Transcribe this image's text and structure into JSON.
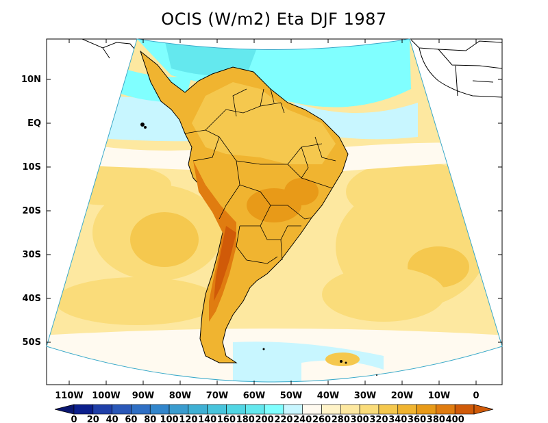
{
  "title": "OCIS (W/m2) Eta DJF 1987",
  "lat_axis": {
    "labels": [
      "10N",
      "EQ",
      "10S",
      "20S",
      "30S",
      "40S",
      "50S"
    ],
    "values": [
      10,
      0,
      -10,
      -20,
      -30,
      -40,
      -50
    ]
  },
  "lon_axis": {
    "labels": [
      "110W",
      "100W",
      "90W",
      "80W",
      "70W",
      "60W",
      "50W",
      "40W",
      "30W",
      "20W",
      "10W",
      "0"
    ],
    "values": [
      -110,
      -100,
      -90,
      -80,
      -70,
      -60,
      -50,
      -40,
      -30,
      -20,
      -10,
      0
    ]
  },
  "colorbar": {
    "labels": [
      "0",
      "20",
      "40",
      "60",
      "80",
      "100",
      "120",
      "140",
      "160",
      "180",
      "200",
      "220",
      "240",
      "260",
      "280",
      "300",
      "320",
      "340",
      "360",
      "380",
      "400"
    ],
    "colors": [
      "#0b1f8c",
      "#1f3fa8",
      "#2a58b8",
      "#2f6fc4",
      "#3286cc",
      "#3a9ccf",
      "#3fb0d4",
      "#48c4dc",
      "#52d6e4",
      "#64e8ee",
      "#80ffff",
      "#c8f6ff",
      "#fffaf0",
      "#fff3c8",
      "#fde8a0",
      "#fadc7a",
      "#f5c84e",
      "#f0b430",
      "#e89a18",
      "#e07c10",
      "#d05a08"
    ],
    "extend_low": "#0a1670",
    "extend_high": "#d05a08"
  },
  "map_colors": {
    "ocean_far": "#fde8a0",
    "ocean_mid": "#fadc7a",
    "ocean_blue": "#80ffff",
    "ocean_lightblue": "#c8f6ff",
    "ocean_cream": "#fffaf0",
    "land_base": "#f0b430",
    "land_dark": "#e07c10",
    "land_light": "#f5c84e",
    "andes": "#d05a08"
  }
}
